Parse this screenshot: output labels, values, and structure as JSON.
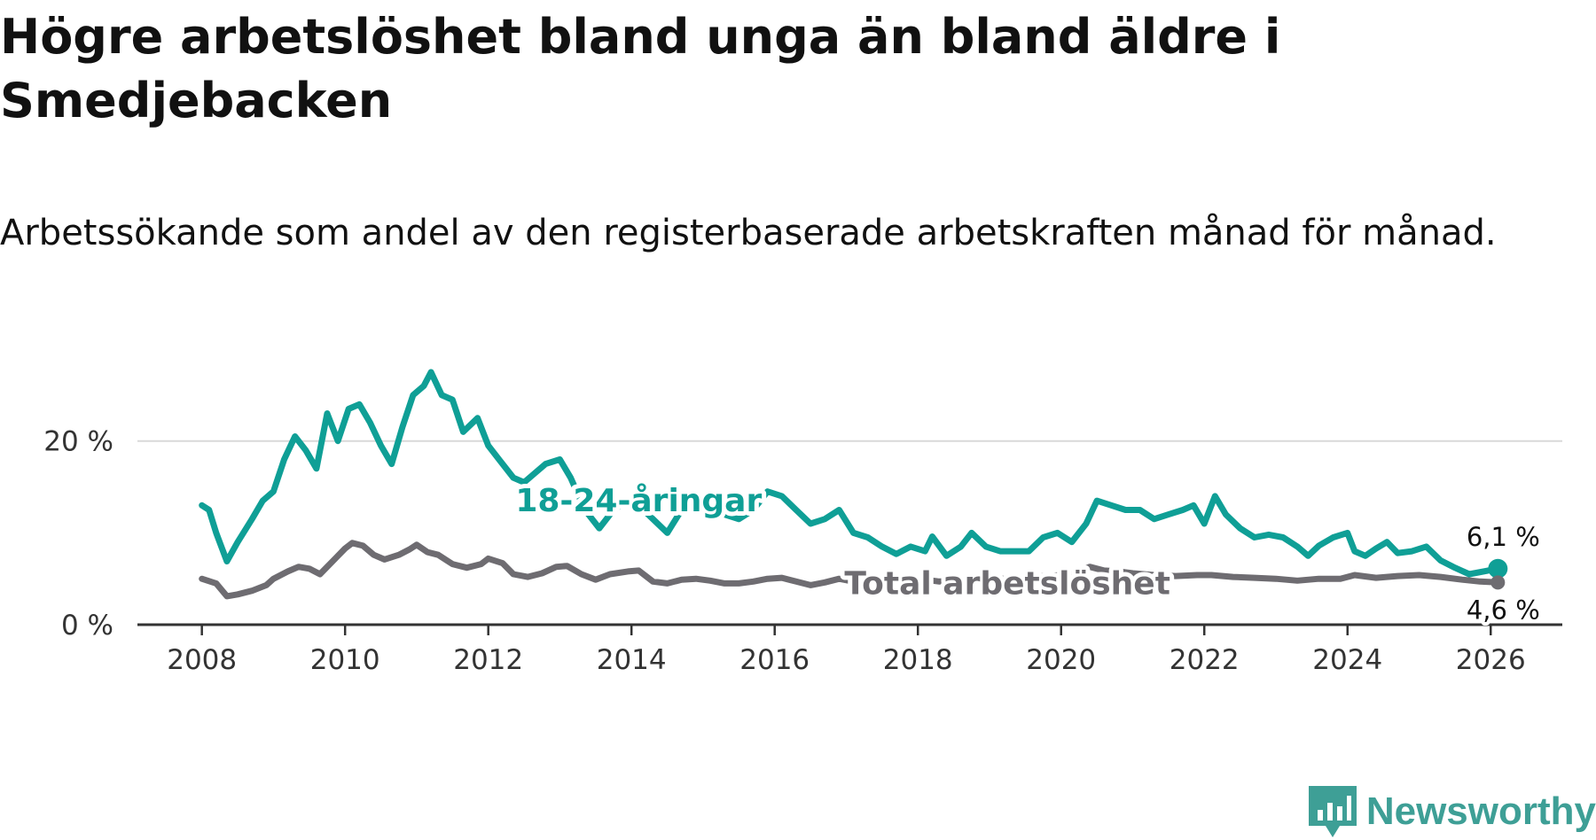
{
  "header": {
    "title": "Högre arbetslöshet bland unga än bland äldre i Smedjebacken",
    "subtitle": "Arbetssökande som andel av den registerbaserade arbetskraften månad för månad."
  },
  "brand": {
    "name": "Newsworthy",
    "icon": "newsworthy-logo-icon",
    "color": "#3e9f96"
  },
  "chart_data": {
    "type": "line",
    "xlim": [
      2007.1,
      2027.0
    ],
    "ylim": [
      0,
      27.5
    ],
    "x_ticks": [
      {
        "value": 2008,
        "label": "2008"
      },
      {
        "value": 2010,
        "label": "2010"
      },
      {
        "value": 2012,
        "label": "2012"
      },
      {
        "value": 2014,
        "label": "2014"
      },
      {
        "value": 2016,
        "label": "2016"
      },
      {
        "value": 2018,
        "label": "2018"
      },
      {
        "value": 2020,
        "label": "2020"
      },
      {
        "value": 2022,
        "label": "2022"
      },
      {
        "value": 2024,
        "label": "2024"
      },
      {
        "value": 2026,
        "label": "2026"
      }
    ],
    "y_ticks": [
      {
        "value": 0,
        "label": "0 %"
      },
      {
        "value": 20,
        "label": "20 %"
      }
    ],
    "grid": "horizontal",
    "series": [
      {
        "name": "Total arbetslöshet",
        "color": "#6e6c71",
        "end_label": "4,6 %",
        "points": [
          [
            2008.0,
            5.0
          ],
          [
            2008.2,
            4.5
          ],
          [
            2008.35,
            3.1
          ],
          [
            2008.5,
            3.3
          ],
          [
            2008.7,
            3.7
          ],
          [
            2008.9,
            4.3
          ],
          [
            2009.0,
            5.0
          ],
          [
            2009.2,
            5.8
          ],
          [
            2009.35,
            6.3
          ],
          [
            2009.5,
            6.1
          ],
          [
            2009.65,
            5.5
          ],
          [
            2009.85,
            7.1
          ],
          [
            2010.0,
            8.3
          ],
          [
            2010.1,
            8.9
          ],
          [
            2010.25,
            8.6
          ],
          [
            2010.4,
            7.6
          ],
          [
            2010.55,
            7.1
          ],
          [
            2010.75,
            7.6
          ],
          [
            2010.9,
            8.2
          ],
          [
            2011.0,
            8.7
          ],
          [
            2011.15,
            7.9
          ],
          [
            2011.3,
            7.6
          ],
          [
            2011.5,
            6.6
          ],
          [
            2011.7,
            6.2
          ],
          [
            2011.9,
            6.6
          ],
          [
            2012.0,
            7.2
          ],
          [
            2012.2,
            6.7
          ],
          [
            2012.35,
            5.5
          ],
          [
            2012.55,
            5.2
          ],
          [
            2012.75,
            5.6
          ],
          [
            2012.95,
            6.3
          ],
          [
            2013.1,
            6.4
          ],
          [
            2013.3,
            5.5
          ],
          [
            2013.5,
            4.9
          ],
          [
            2013.7,
            5.5
          ],
          [
            2013.95,
            5.8
          ],
          [
            2014.1,
            5.9
          ],
          [
            2014.3,
            4.7
          ],
          [
            2014.5,
            4.5
          ],
          [
            2014.7,
            4.9
          ],
          [
            2014.9,
            5.0
          ],
          [
            2015.1,
            4.8
          ],
          [
            2015.3,
            4.5
          ],
          [
            2015.5,
            4.5
          ],
          [
            2015.7,
            4.7
          ],
          [
            2015.9,
            5.0
          ],
          [
            2016.1,
            5.1
          ],
          [
            2016.3,
            4.7
          ],
          [
            2016.5,
            4.3
          ],
          [
            2016.7,
            4.6
          ],
          [
            2016.9,
            5.0
          ],
          [
            2017.1,
            4.7
          ],
          [
            2017.3,
            4.6
          ],
          [
            2017.5,
            4.4
          ],
          [
            2017.7,
            4.6
          ],
          [
            2017.9,
            4.8
          ],
          [
            2018.1,
            4.9
          ],
          [
            2018.3,
            4.7
          ],
          [
            2018.6,
            4.8
          ],
          [
            2018.9,
            5.0
          ],
          [
            2019.2,
            5.0
          ],
          [
            2019.5,
            5.2
          ],
          [
            2019.8,
            5.3
          ],
          [
            2020.0,
            5.4
          ],
          [
            2020.2,
            5.6
          ],
          [
            2020.4,
            6.3
          ],
          [
            2020.6,
            5.9
          ],
          [
            2020.8,
            5.8
          ],
          [
            2021.0,
            5.6
          ],
          [
            2021.3,
            5.4
          ],
          [
            2021.6,
            5.3
          ],
          [
            2021.9,
            5.4
          ],
          [
            2022.1,
            5.4
          ],
          [
            2022.4,
            5.2
          ],
          [
            2022.7,
            5.1
          ],
          [
            2023.0,
            5.0
          ],
          [
            2023.3,
            4.8
          ],
          [
            2023.6,
            5.0
          ],
          [
            2023.9,
            5.0
          ],
          [
            2024.1,
            5.4
          ],
          [
            2024.4,
            5.1
          ],
          [
            2024.7,
            5.3
          ],
          [
            2025.0,
            5.4
          ],
          [
            2025.3,
            5.2
          ],
          [
            2025.6,
            4.9
          ],
          [
            2025.85,
            4.7
          ],
          [
            2026.1,
            4.6
          ]
        ]
      },
      {
        "name": "18-24-åringar",
        "color": "#0f9f96",
        "end_label": "6,1 %",
        "points": [
          [
            2008.0,
            13.0
          ],
          [
            2008.1,
            12.5
          ],
          [
            2008.2,
            10.0
          ],
          [
            2008.35,
            6.9
          ],
          [
            2008.5,
            9.0
          ],
          [
            2008.7,
            11.5
          ],
          [
            2008.85,
            13.5
          ],
          [
            2009.0,
            14.5
          ],
          [
            2009.15,
            18.0
          ],
          [
            2009.3,
            20.5
          ],
          [
            2009.45,
            19.0
          ],
          [
            2009.6,
            17.0
          ],
          [
            2009.75,
            23.0
          ],
          [
            2009.9,
            20.0
          ],
          [
            2010.05,
            23.5
          ],
          [
            2010.2,
            24.0
          ],
          [
            2010.35,
            22.0
          ],
          [
            2010.5,
            19.5
          ],
          [
            2010.65,
            17.5
          ],
          [
            2010.8,
            21.5
          ],
          [
            2010.95,
            25.0
          ],
          [
            2011.1,
            26.0
          ],
          [
            2011.2,
            27.5
          ],
          [
            2011.35,
            25.0
          ],
          [
            2011.5,
            24.5
          ],
          [
            2011.65,
            21.0
          ],
          [
            2011.85,
            22.5
          ],
          [
            2012.0,
            19.5
          ],
          [
            2012.15,
            18.0
          ],
          [
            2012.35,
            16.0
          ],
          [
            2012.5,
            15.5
          ],
          [
            2012.65,
            16.5
          ],
          [
            2012.8,
            17.5
          ],
          [
            2013.0,
            18.0
          ],
          [
            2013.15,
            16.0
          ],
          [
            2013.35,
            12.5
          ],
          [
            2013.55,
            10.5
          ],
          [
            2013.75,
            12.5
          ],
          [
            2013.95,
            13.5
          ],
          [
            2014.1,
            13.0
          ],
          [
            2014.3,
            11.5
          ],
          [
            2014.5,
            10.0
          ],
          [
            2014.7,
            12.5
          ],
          [
            2014.9,
            13.0
          ],
          [
            2015.1,
            12.5
          ],
          [
            2015.3,
            12.0
          ],
          [
            2015.5,
            11.5
          ],
          [
            2015.7,
            12.5
          ],
          [
            2015.9,
            14.5
          ],
          [
            2016.1,
            14.0
          ],
          [
            2016.3,
            12.5
          ],
          [
            2016.5,
            11.0
          ],
          [
            2016.7,
            11.5
          ],
          [
            2016.9,
            12.5
          ],
          [
            2017.1,
            10.0
          ],
          [
            2017.3,
            9.5
          ],
          [
            2017.5,
            8.5
          ],
          [
            2017.7,
            7.7
          ],
          [
            2017.9,
            8.5
          ],
          [
            2018.1,
            8.0
          ],
          [
            2018.2,
            9.6
          ],
          [
            2018.4,
            7.5
          ],
          [
            2018.6,
            8.5
          ],
          [
            2018.75,
            10.0
          ],
          [
            2018.95,
            8.5
          ],
          [
            2019.15,
            8.0
          ],
          [
            2019.35,
            8.0
          ],
          [
            2019.55,
            8.0
          ],
          [
            2019.75,
            9.5
          ],
          [
            2019.95,
            10.0
          ],
          [
            2020.15,
            9.0
          ],
          [
            2020.35,
            11.0
          ],
          [
            2020.5,
            13.5
          ],
          [
            2020.7,
            13.0
          ],
          [
            2020.9,
            12.5
          ],
          [
            2021.1,
            12.5
          ],
          [
            2021.3,
            11.5
          ],
          [
            2021.5,
            12.0
          ],
          [
            2021.7,
            12.5
          ],
          [
            2021.85,
            13.0
          ],
          [
            2022.0,
            11.0
          ],
          [
            2022.15,
            14.0
          ],
          [
            2022.3,
            12.0
          ],
          [
            2022.5,
            10.5
          ],
          [
            2022.7,
            9.5
          ],
          [
            2022.9,
            9.8
          ],
          [
            2023.1,
            9.5
          ],
          [
            2023.3,
            8.5
          ],
          [
            2023.45,
            7.5
          ],
          [
            2023.6,
            8.6
          ],
          [
            2023.8,
            9.5
          ],
          [
            2024.0,
            10.0
          ],
          [
            2024.1,
            8.0
          ],
          [
            2024.25,
            7.5
          ],
          [
            2024.4,
            8.3
          ],
          [
            2024.55,
            9.0
          ],
          [
            2024.7,
            7.8
          ],
          [
            2024.9,
            8.0
          ],
          [
            2025.1,
            8.5
          ],
          [
            2025.3,
            7.0
          ],
          [
            2025.5,
            6.2
          ],
          [
            2025.7,
            5.5
          ],
          [
            2025.9,
            5.8
          ],
          [
            2026.1,
            6.1
          ]
        ]
      }
    ]
  }
}
